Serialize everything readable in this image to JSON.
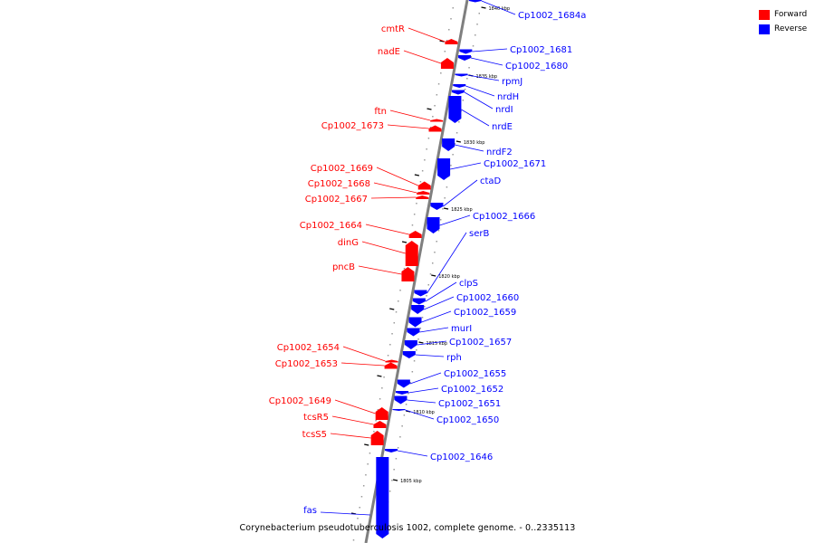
{
  "caption": "Corynebacterium pseudotuberculosis 1002, complete genome. - 0..2335113",
  "legend": [
    {
      "label": "Forward",
      "color": "#ff0000"
    },
    {
      "label": "Reverse",
      "color": "#0000ff"
    }
  ],
  "colors": {
    "forward": "#ff0000",
    "reverse": "#0000ff",
    "backbone": "#7f7f7f"
  },
  "scale_ticks": [
    "1840 kbp",
    "1835 kbp",
    "1830 kbp",
    "1825 kbp",
    "1820 kbp",
    "1815 kbp",
    "1810 kbp",
    "1805 kbp"
  ],
  "forward_genes": [
    "cmtR",
    "nadE",
    "ftn",
    "Cp1002_1673",
    "Cp1002_1669",
    "Cp1002_1668",
    "Cp1002_1667",
    "Cp1002_1664",
    "dinG",
    "pncB",
    "Cp1002_1654",
    "Cp1002_1653",
    "Cp1002_1649",
    "tcsR5",
    "tcsS5"
  ],
  "reverse_genes": [
    "Cp1002_1684a",
    "Cp1002_1681",
    "Cp1002_1680",
    "rpmJ",
    "nrdH",
    "nrdI",
    "nrdE",
    "nrdF2",
    "Cp1002_1671",
    "ctaD",
    "Cp1002_1666",
    "serB",
    "clpS",
    "Cp1002_1660",
    "Cp1002_1659",
    "murI",
    "Cp1002_1657",
    "rph",
    "Cp1002_1655",
    "Cp1002_1652",
    "Cp1002_1651",
    "Cp1002_1650",
    "Cp1002_1646",
    "fas"
  ]
}
